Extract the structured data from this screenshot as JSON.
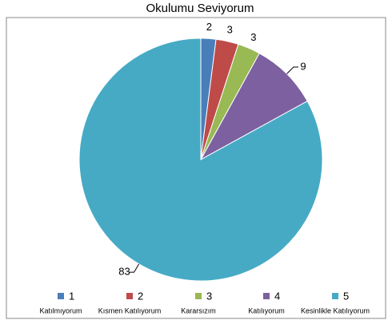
{
  "chart_data": {
    "type": "pie",
    "title": "Okulumu Seviyorum",
    "categories": [
      "1",
      "2",
      "3",
      "4",
      "5"
    ],
    "descriptions": [
      "Katılmıyorum",
      "Kısmen Katılıyorum",
      "Kararsızım",
      "Katılıyorum",
      "Kesinlikle Katılıyorum"
    ],
    "values": [
      2,
      3,
      3,
      9,
      83
    ],
    "colors": [
      "#4a7ebb",
      "#be4b48",
      "#98b954",
      "#7d60a0",
      "#46aac5"
    ],
    "legend": "bottom"
  }
}
